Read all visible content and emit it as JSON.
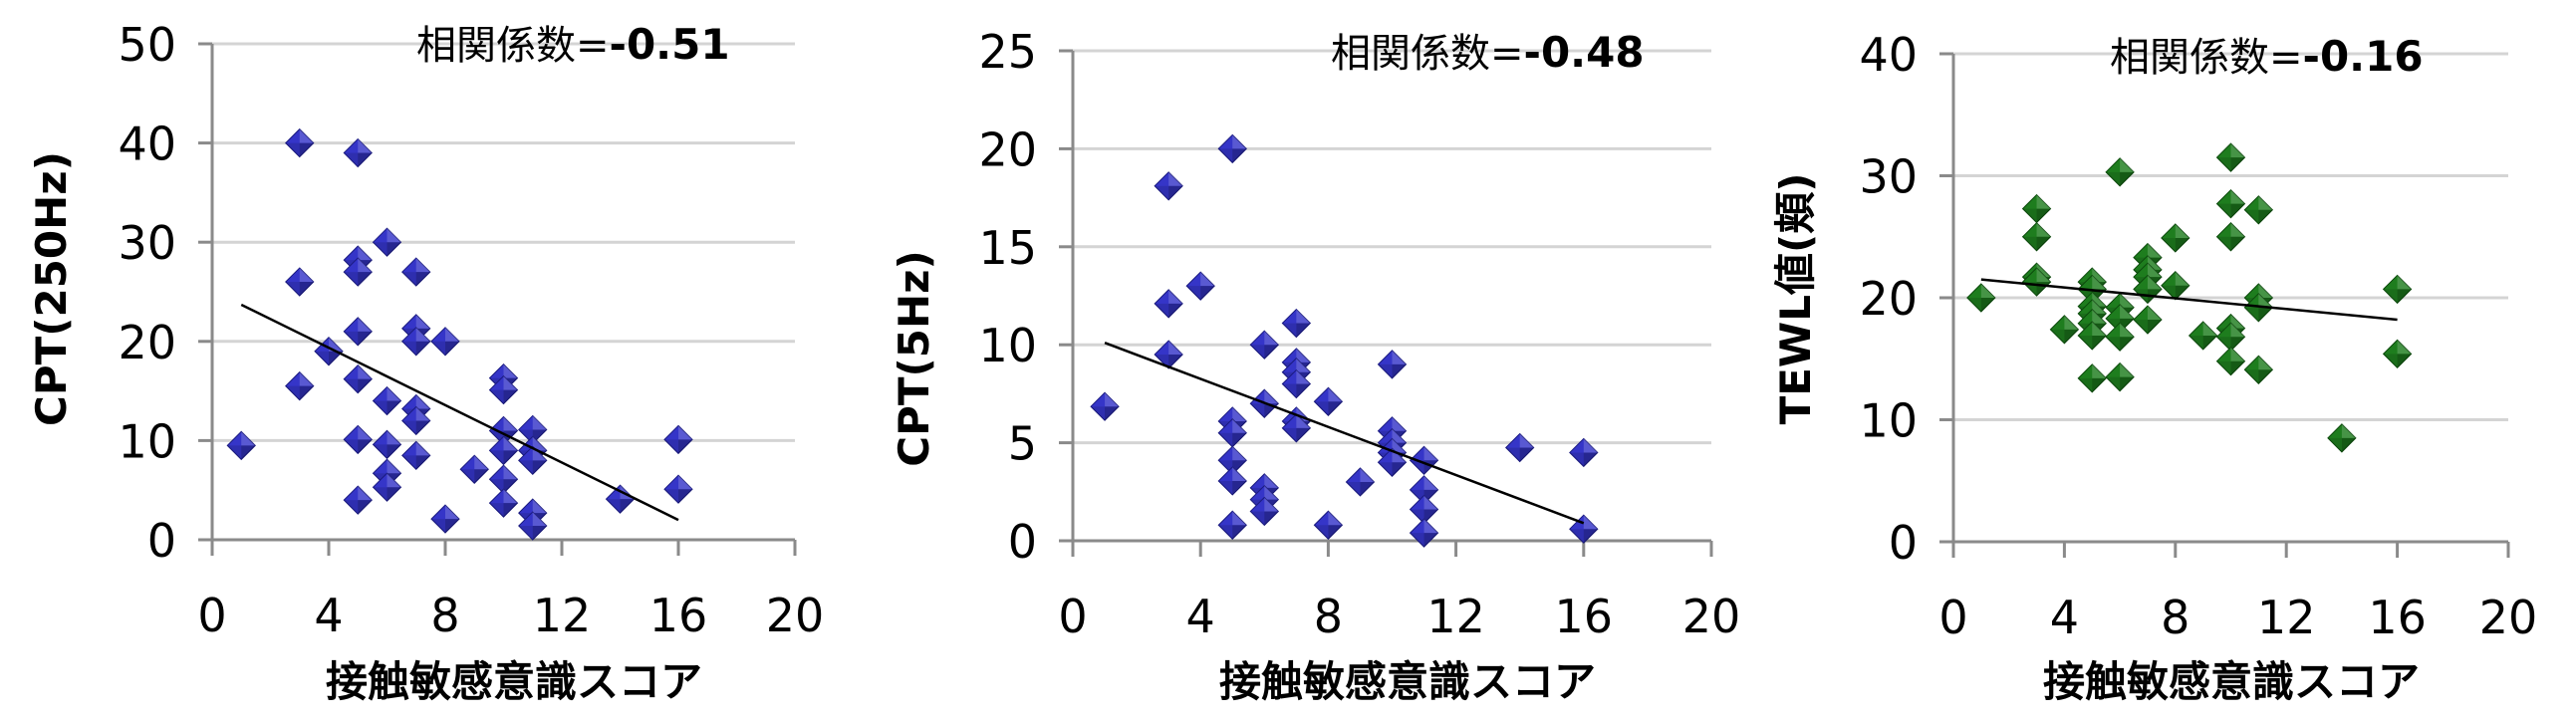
{
  "common": {
    "xlabel": "接触敏感意識スコア",
    "corr_prefix": "相関係数=",
    "x_ticks": [
      "0",
      "4",
      "8",
      "12",
      "16",
      "20"
    ]
  },
  "colors": {
    "blue_marker": "#3535c8",
    "blue_marker_dark": "#1a1a80",
    "green_marker": "#1e7d1e",
    "green_marker_dark": "#0c4a0c",
    "gridline": "#d4d4d4",
    "axis": "#8a8a8a",
    "trendline": "#000000"
  },
  "chart_data": [
    {
      "type": "scatter",
      "title": "",
      "annotation": "相関係数=-0.51",
      "correlation": "-0.51",
      "xlabel": "接触敏感意識スコア",
      "ylabel": "CPT(250Hz)",
      "xlim": [
        0,
        20
      ],
      "ylim": [
        0,
        50
      ],
      "x_ticks": [
        0,
        4,
        8,
        12,
        16,
        20
      ],
      "y_ticks": [
        0,
        10,
        20,
        30,
        40,
        50
      ],
      "grid": true,
      "marker": "diamond",
      "color": "#3535c8",
      "trendline": {
        "x": [
          1,
          16
        ],
        "y": [
          23.7,
          2.0
        ]
      },
      "points": [
        [
          1,
          9.5
        ],
        [
          3,
          40
        ],
        [
          3,
          26
        ],
        [
          3,
          15.5
        ],
        [
          4,
          19
        ],
        [
          5,
          39
        ],
        [
          5,
          28.2
        ],
        [
          5,
          27
        ],
        [
          5,
          21
        ],
        [
          5,
          16.2
        ],
        [
          5,
          10.1
        ],
        [
          5,
          4
        ],
        [
          6,
          30
        ],
        [
          6,
          14
        ],
        [
          6,
          9.6
        ],
        [
          6,
          6.7
        ],
        [
          6,
          5.3
        ],
        [
          7,
          27
        ],
        [
          7,
          21.3
        ],
        [
          7,
          20
        ],
        [
          7,
          13.2
        ],
        [
          7,
          12
        ],
        [
          7,
          8.5
        ],
        [
          8,
          20
        ],
        [
          8,
          2.1
        ],
        [
          9,
          7.1
        ],
        [
          10,
          16.3
        ],
        [
          10,
          15.1
        ],
        [
          10,
          11
        ],
        [
          10,
          9
        ],
        [
          10,
          6.1
        ],
        [
          10,
          3.7
        ],
        [
          11,
          11.1
        ],
        [
          11,
          9
        ],
        [
          11,
          8
        ],
        [
          11,
          2.7
        ],
        [
          11,
          1.4
        ],
        [
          14,
          4.1
        ],
        [
          16,
          10.1
        ],
        [
          16,
          5.1
        ]
      ]
    },
    {
      "type": "scatter",
      "title": "",
      "annotation": "相関係数=-0.48",
      "correlation": "-0.48",
      "xlabel": "接触敏感意識スコア",
      "ylabel": "CPT(5Hz)",
      "xlim": [
        0,
        20
      ],
      "ylim": [
        0,
        25
      ],
      "x_ticks": [
        0,
        4,
        8,
        12,
        16,
        20
      ],
      "y_ticks": [
        0,
        5,
        10,
        15,
        20,
        25
      ],
      "grid": true,
      "marker": "diamond",
      "color": "#3535c8",
      "trendline": {
        "x": [
          1,
          16
        ],
        "y": [
          10.1,
          0.9
        ]
      },
      "points": [
        [
          1,
          6.85
        ],
        [
          3,
          18.1
        ],
        [
          3,
          12.1
        ],
        [
          3,
          9.5
        ],
        [
          4,
          13
        ],
        [
          5,
          20
        ],
        [
          5,
          6.1
        ],
        [
          5,
          5.5
        ],
        [
          5,
          4.1
        ],
        [
          5,
          3.05
        ],
        [
          5,
          0.8
        ],
        [
          6,
          10
        ],
        [
          6,
          7
        ],
        [
          6,
          2.7
        ],
        [
          6,
          2.1
        ],
        [
          6,
          1.5
        ],
        [
          7,
          11.1
        ],
        [
          7,
          9.1
        ],
        [
          7,
          8.6
        ],
        [
          7,
          8
        ],
        [
          7,
          6.1
        ],
        [
          7,
          5.75
        ],
        [
          8,
          7.1
        ],
        [
          8,
          0.8
        ],
        [
          9,
          3
        ],
        [
          10,
          9
        ],
        [
          10,
          5.6
        ],
        [
          10,
          5
        ],
        [
          10,
          4.5
        ],
        [
          10,
          4
        ],
        [
          11,
          4.1
        ],
        [
          11,
          2.6
        ],
        [
          11,
          1.6
        ],
        [
          11,
          0.4
        ],
        [
          14,
          4.75
        ],
        [
          16,
          4.5
        ],
        [
          16,
          0.6
        ]
      ]
    },
    {
      "type": "scatter",
      "title": "",
      "annotation": "相関係数=-0.16",
      "correlation": "-0.16",
      "xlabel": "接触敏感意識スコア",
      "ylabel": "TEWL値(頬)",
      "xlim": [
        0,
        20
      ],
      "ylim": [
        0,
        40
      ],
      "x_ticks": [
        0,
        4,
        8,
        12,
        16,
        20
      ],
      "y_ticks": [
        0,
        10,
        20,
        30,
        40
      ],
      "grid": true,
      "marker": "diamond",
      "color": "#1e7d1e",
      "trendline": {
        "x": [
          1,
          16
        ],
        "y": [
          21.5,
          18.2
        ]
      },
      "points": [
        [
          1,
          20
        ],
        [
          3,
          27.3
        ],
        [
          3,
          25
        ],
        [
          3,
          21.7
        ],
        [
          3,
          21.3
        ],
        [
          4,
          17.4
        ],
        [
          5,
          21.3
        ],
        [
          5,
          20.7
        ],
        [
          5,
          19.3
        ],
        [
          5,
          18.7
        ],
        [
          5,
          17.9
        ],
        [
          5,
          16.9
        ],
        [
          5,
          13.4
        ],
        [
          6,
          30.3
        ],
        [
          6,
          19.2
        ],
        [
          6,
          18.3
        ],
        [
          6,
          16.8
        ],
        [
          6,
          13.5
        ],
        [
          7,
          23.3
        ],
        [
          7,
          22.3
        ],
        [
          7,
          21.7
        ],
        [
          7,
          20.7
        ],
        [
          7,
          18.2
        ],
        [
          8,
          24.9
        ],
        [
          8,
          21
        ],
        [
          9,
          16.9
        ],
        [
          10,
          31.5
        ],
        [
          10,
          27.7
        ],
        [
          10,
          25
        ],
        [
          10,
          17.5
        ],
        [
          10,
          16.8
        ],
        [
          10,
          14.8
        ],
        [
          11,
          27.2
        ],
        [
          11,
          20
        ],
        [
          11,
          19.2
        ],
        [
          11,
          14.1
        ],
        [
          14,
          8.5
        ],
        [
          16,
          20.7
        ],
        [
          16,
          15.4
        ]
      ]
    }
  ],
  "panels": [
    {
      "ylabel": "CPT(250Hz)",
      "corr_value": "-0.51"
    },
    {
      "ylabel": "CPT(5Hz)",
      "corr_value": "-0.48"
    },
    {
      "ylabel": "TEWL値(頬)",
      "corr_value": "-0.16"
    }
  ]
}
